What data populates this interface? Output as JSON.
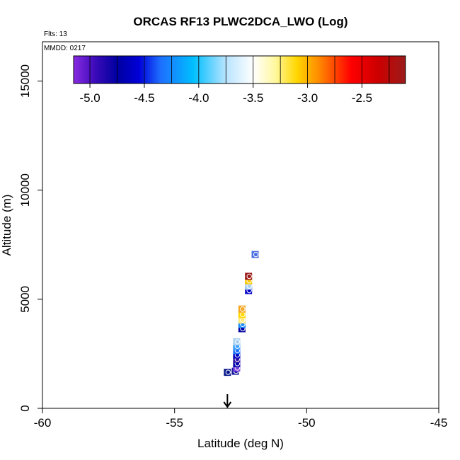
{
  "chart_data": {
    "type": "scatter",
    "title": "ORCAS RF13 PLWC2DCA_LWO (Log)",
    "xlabel": "Latitude (deg N)",
    "ylabel": "Altitude (m)",
    "xlim": [
      -60,
      -45
    ],
    "ylim": [
      0,
      16800
    ],
    "xticks": [
      -60,
      -55,
      -50,
      -45
    ],
    "yticks": [
      0,
      5000,
      10000,
      15000
    ],
    "annotations": {
      "flights": "Flts: 13",
      "mmdd": "MMDD: 0217"
    },
    "marker_latitude": -53,
    "colorbar": {
      "range": [
        -5.15,
        -2.1
      ],
      "ticks": [
        -5.0,
        -4.5,
        -4.0,
        -3.5,
        -3.0,
        -2.5
      ],
      "stops": [
        {
          "v": -5.15,
          "c": "#8a2be2"
        },
        {
          "v": -4.95,
          "c": "#3a0ab8"
        },
        {
          "v": -4.75,
          "c": "#0000a0"
        },
        {
          "v": -4.55,
          "c": "#0000d8"
        },
        {
          "v": -4.35,
          "c": "#1e6fff"
        },
        {
          "v": -4.05,
          "c": "#00bfff"
        },
        {
          "v": -3.75,
          "c": "#b8e4ff"
        },
        {
          "v": -3.5,
          "c": "#ffffff"
        },
        {
          "v": -3.3,
          "c": "#fff8a0"
        },
        {
          "v": -3.1,
          "c": "#ffd700"
        },
        {
          "v": -2.9,
          "c": "#ff8c00"
        },
        {
          "v": -2.6,
          "c": "#ff0000"
        },
        {
          "v": -2.35,
          "c": "#cc0000"
        },
        {
          "v": -2.1,
          "c": "#9b1b1b"
        }
      ]
    },
    "points": [
      {
        "lat": -53.0,
        "alt": 1650,
        "color": "#0a1a8c"
      },
      {
        "lat": -52.7,
        "alt": 1700,
        "color": "#1a1aa0"
      },
      {
        "lat": -52.65,
        "alt": 1850,
        "color": "#7a3fe0"
      },
      {
        "lat": -52.65,
        "alt": 2050,
        "color": "#0000a8"
      },
      {
        "lat": -52.65,
        "alt": 2250,
        "color": "#3010a8"
      },
      {
        "lat": -52.65,
        "alt": 2450,
        "color": "#0000c0"
      },
      {
        "lat": -52.65,
        "alt": 2650,
        "color": "#1e6fff"
      },
      {
        "lat": -52.65,
        "alt": 2850,
        "color": "#3a9fff"
      },
      {
        "lat": -52.65,
        "alt": 3050,
        "color": "#a9d0f0"
      },
      {
        "lat": -52.45,
        "alt": 3650,
        "color": "#0000a0"
      },
      {
        "lat": -52.45,
        "alt": 3850,
        "color": "#1e8fff"
      },
      {
        "lat": -52.45,
        "alt": 4050,
        "color": "#ffe97a"
      },
      {
        "lat": -52.45,
        "alt": 4300,
        "color": "#ffd700"
      },
      {
        "lat": -52.45,
        "alt": 4550,
        "color": "#f5a623"
      },
      {
        "lat": -52.2,
        "alt": 5400,
        "color": "#0000c8"
      },
      {
        "lat": -52.2,
        "alt": 5600,
        "color": "#a9d0f0"
      },
      {
        "lat": -52.2,
        "alt": 5850,
        "color": "#ffc800"
      },
      {
        "lat": -52.2,
        "alt": 6050,
        "color": "#9b1b1b"
      },
      {
        "lat": -51.95,
        "alt": 7050,
        "color": "#4a6fe0"
      }
    ]
  }
}
